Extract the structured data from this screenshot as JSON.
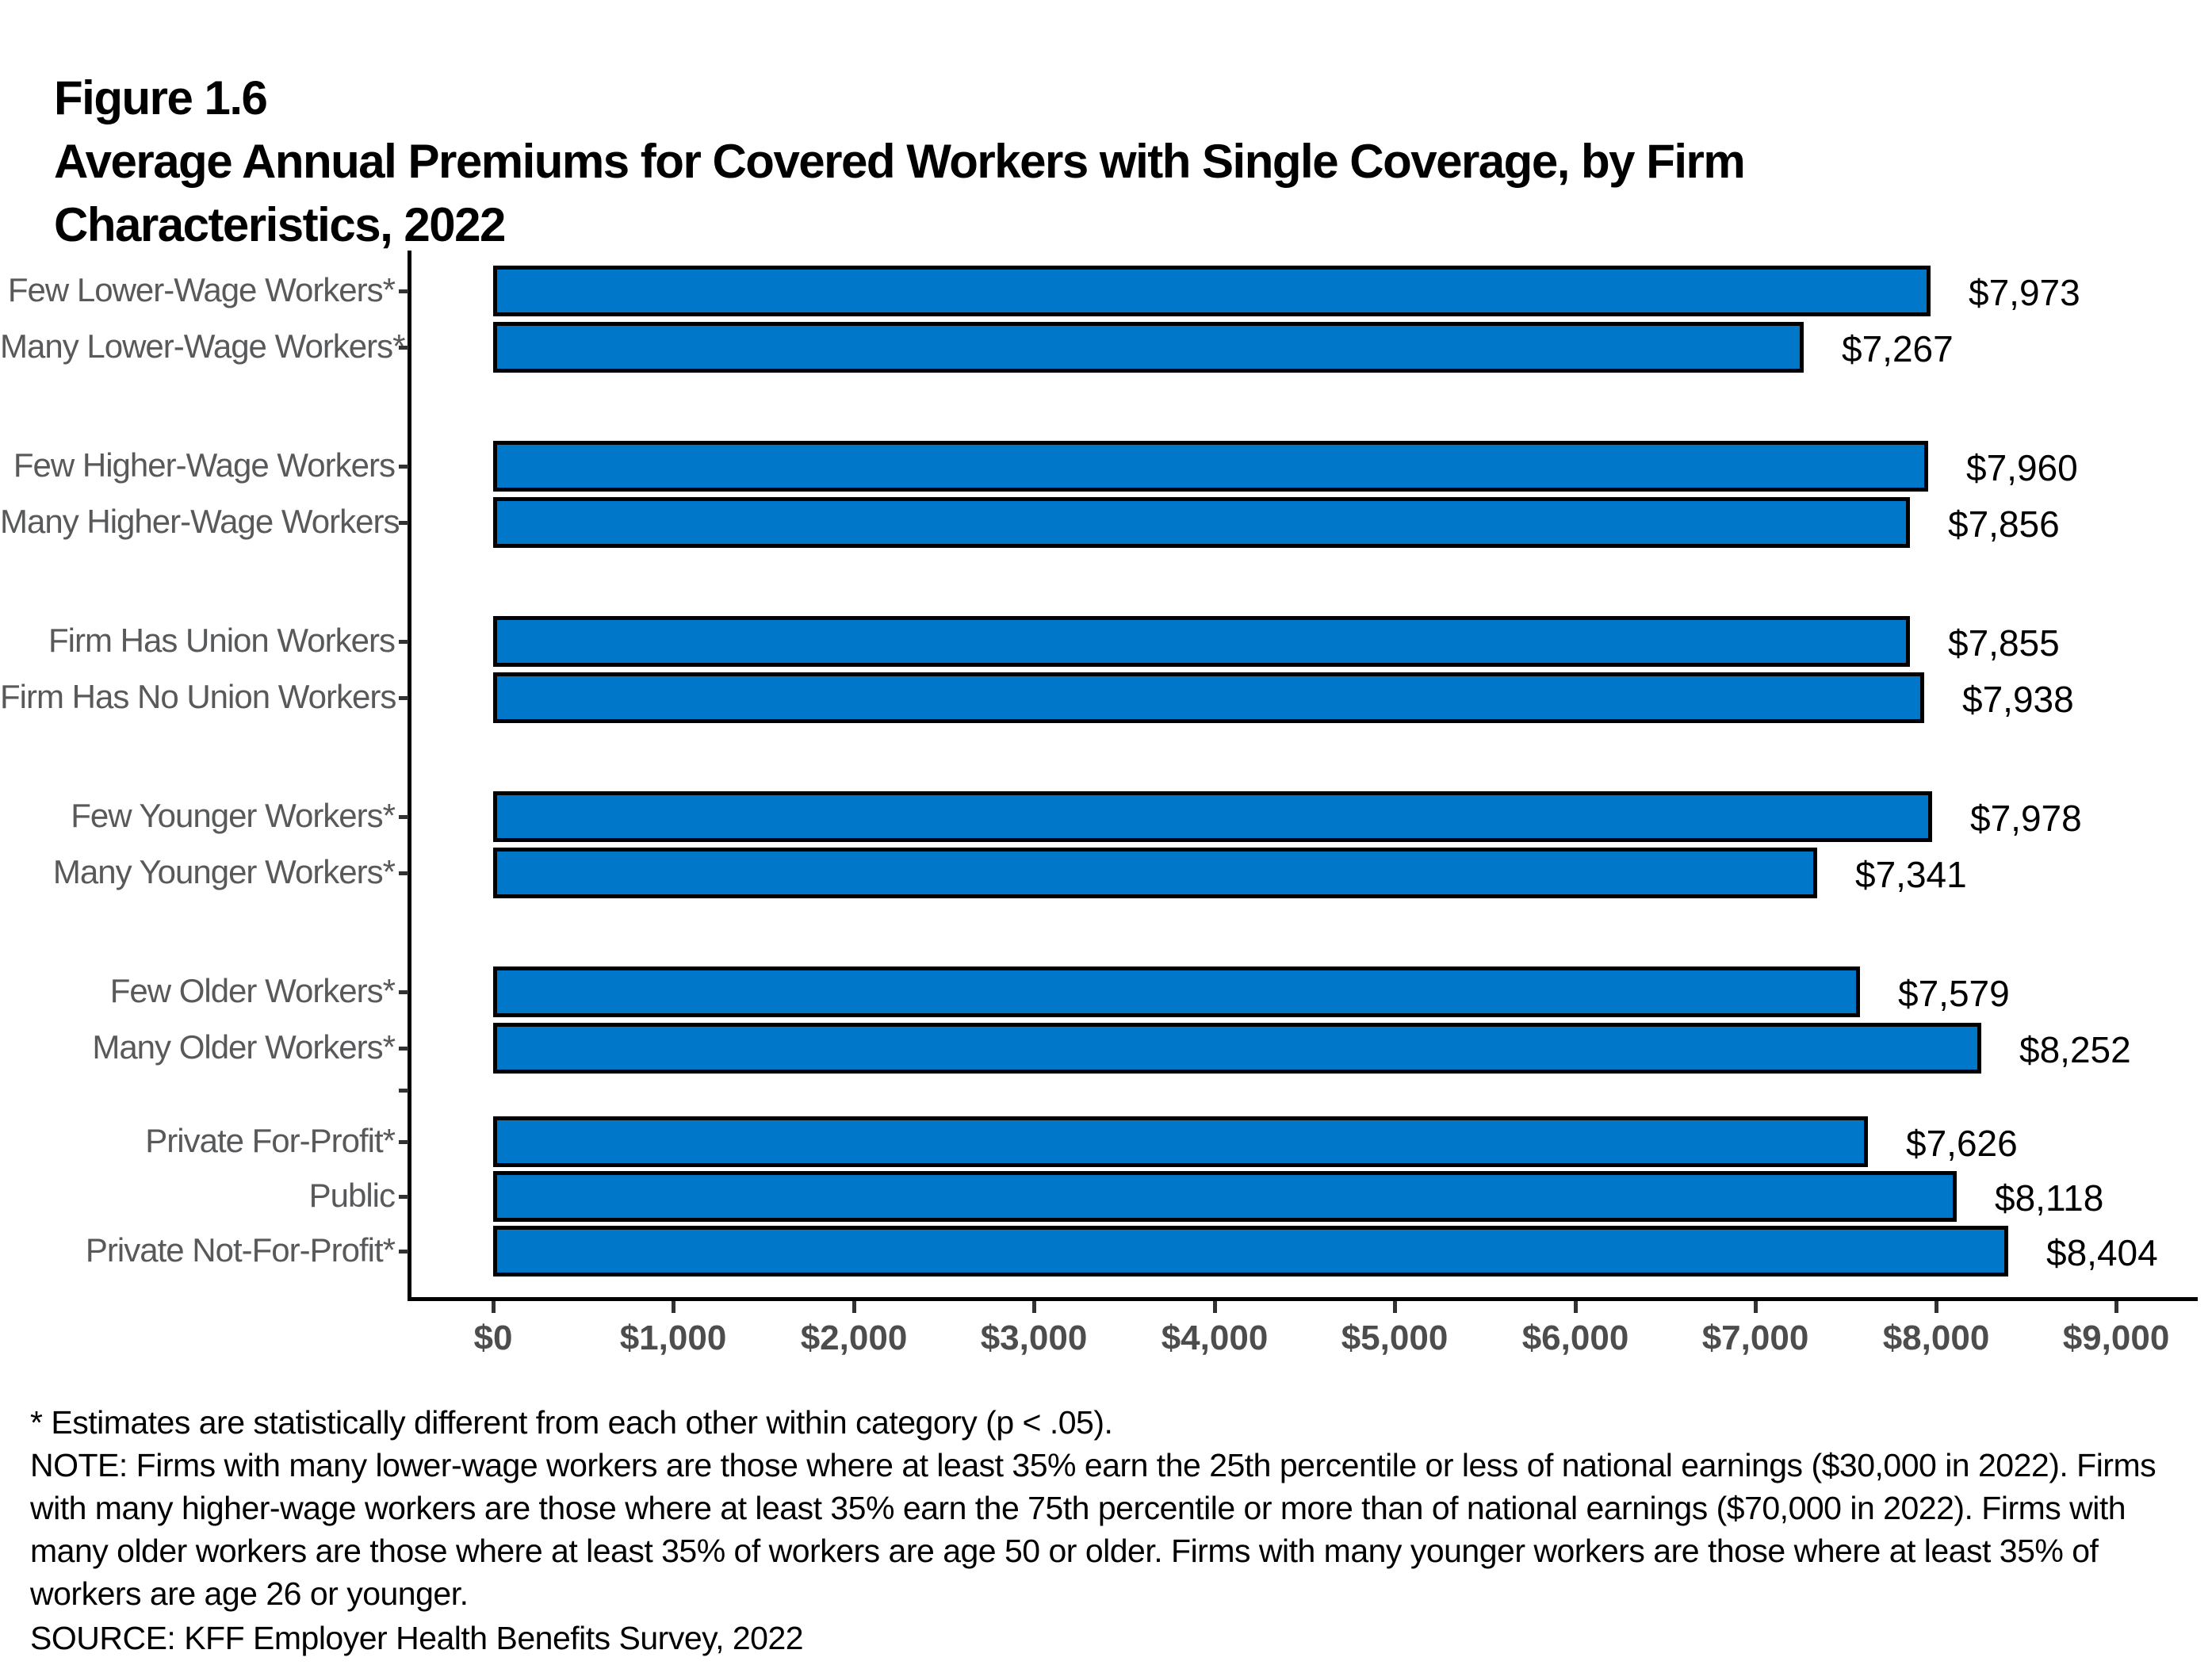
{
  "header": {
    "figure_label": "Figure 1.6",
    "title_lines": [
      "Average Annual Premiums for Covered Workers with Single Coverage, by Firm",
      "Characteristics, 2022"
    ]
  },
  "chart_data": {
    "type": "bar",
    "orientation": "horizontal",
    "title": "Average Annual Premiums for Covered Workers with Single Coverage, by Firm Characteristics, 2022",
    "xlabel": "",
    "ylabel": "",
    "xlim": [
      0,
      9000
    ],
    "x_tick_values": [
      0,
      1000,
      2000,
      3000,
      4000,
      5000,
      6000,
      7000,
      8000,
      9000
    ],
    "x_tick_labels": [
      "$0",
      "$1,000",
      "$2,000",
      "$3,000",
      "$4,000",
      "$5,000",
      "$6,000",
      "$7,000",
      "$8,000",
      "$9,000"
    ],
    "grid": false,
    "legend": false,
    "bar_color": "#0077C8",
    "bar_border_color": "#000000",
    "groups": [
      {
        "name": "lower-wage",
        "items": [
          {
            "label": "Few Lower-Wage Workers*",
            "value": 7973,
            "value_label": "$7,973"
          },
          {
            "label": "Many Lower-Wage Workers*",
            "value": 7267,
            "value_label": "$7,267"
          }
        ]
      },
      {
        "name": "higher-wage",
        "items": [
          {
            "label": "Few Higher-Wage Workers",
            "value": 7960,
            "value_label": "$7,960"
          },
          {
            "label": "Many Higher-Wage Workers",
            "value": 7856,
            "value_label": "$7,856"
          }
        ]
      },
      {
        "name": "union",
        "items": [
          {
            "label": "Firm Has Union Workers",
            "value": 7855,
            "value_label": "$7,855"
          },
          {
            "label": "Firm Has No Union Workers",
            "value": 7938,
            "value_label": "$7,938"
          }
        ]
      },
      {
        "name": "younger",
        "items": [
          {
            "label": "Few Younger Workers*",
            "value": 7978,
            "value_label": "$7,978"
          },
          {
            "label": "Many Younger Workers*",
            "value": 7341,
            "value_label": "$7,341"
          }
        ]
      },
      {
        "name": "older",
        "items": [
          {
            "label": "Few Older Workers*",
            "value": 7579,
            "value_label": "$7,579"
          },
          {
            "label": "Many Older Workers*",
            "value": 8252,
            "value_label": "$8,252"
          }
        ]
      },
      {
        "name": "ownership",
        "items": [
          {
            "label": "Private For-Profit*",
            "value": 7626,
            "value_label": "$7,626"
          },
          {
            "label": "Public",
            "value": 8118,
            "value_label": "$8,118"
          },
          {
            "label": "Private Not-For-Profit*",
            "value": 8404,
            "value_label": "$8,404"
          }
        ]
      }
    ]
  },
  "footnotes": {
    "lines": [
      "* Estimates are statistically different from each other within category (p < .05).",
      "NOTE: Firms with many lower-wage workers are those where at least 35% earn the 25th percentile or less of national earnings ($30,000 in 2022). Firms",
      "with many higher-wage workers are those where at least 35% earn the 75th percentile or more than of national earnings ($70,000 in 2022). Firms with",
      "many older workers are those where at least 35% of workers are age 50 or older. Firms with many younger workers are those where at least 35% of",
      "workers are age 26 or younger.",
      "SOURCE: KFF Employer Health Benefits Survey, 2022"
    ]
  },
  "colors": {
    "bar_fill": "#0077C8",
    "bar_border": "#000000",
    "axis": "#000000",
    "category_label": "#58595B",
    "tick_label": "#4D4D4D",
    "value_label": "#000000",
    "background": "#FFFFFF"
  }
}
